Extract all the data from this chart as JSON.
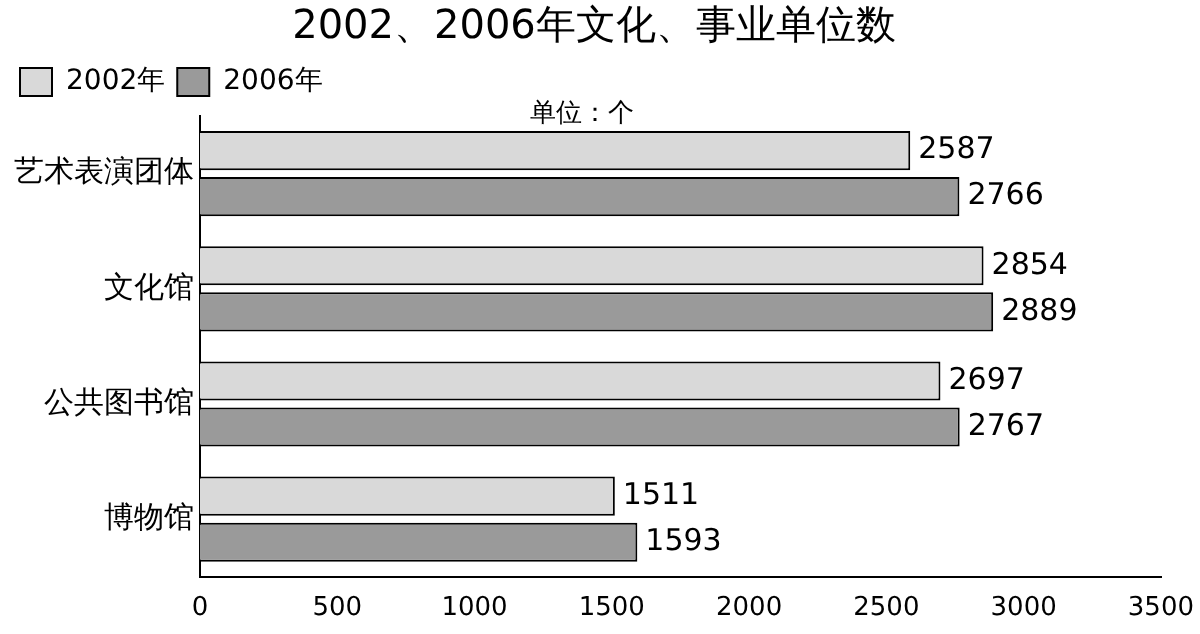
{
  "chart_data": {
    "type": "bar",
    "orientation": "horizontal",
    "title": "2002、2006年文化、事业单位数",
    "categories": [
      "艺术表演团体",
      "文化馆",
      "公共图书馆",
      "博物馆"
    ],
    "series": [
      {
        "name": "2002年",
        "color": "#d9d9d9",
        "values": [
          2587,
          2854,
          2697,
          1511
        ]
      },
      {
        "name": "2006年",
        "color": "#9a9a9a",
        "values": [
          2766,
          2889,
          2767,
          1593
        ]
      }
    ],
    "xlim": [
      0,
      3500
    ],
    "xticks": [
      0,
      500,
      1000,
      1500,
      2000,
      2500,
      3000,
      3500
    ],
    "grid": false,
    "legend": "top left",
    "data_labels": true,
    "annotations": [
      "单位：个"
    ]
  }
}
